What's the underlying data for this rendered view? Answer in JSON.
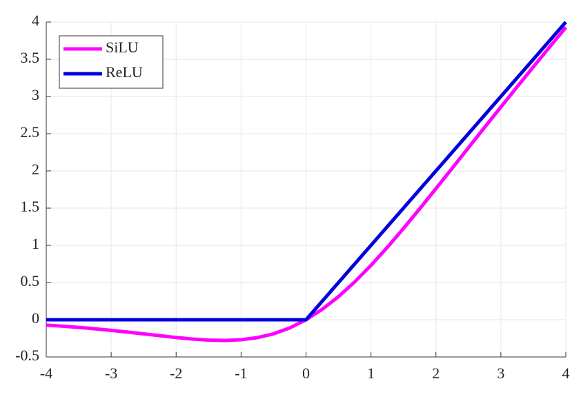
{
  "chart_data": {
    "type": "line",
    "x": [
      -4,
      -3.75,
      -3.5,
      -3.25,
      -3,
      -2.75,
      -2.5,
      -2.25,
      -2,
      -1.75,
      -1.5,
      -1.25,
      -1,
      -0.75,
      -0.5,
      -0.25,
      0,
      0.25,
      0.5,
      0.75,
      1,
      1.25,
      1.5,
      1.75,
      2,
      2.25,
      2.5,
      2.75,
      3,
      3.25,
      3.5,
      3.75,
      4
    ],
    "series": [
      {
        "name": "SiLU",
        "color": "#ff00ff",
        "values": [
          -0.0719,
          -0.0862,
          -0.1026,
          -0.1213,
          -0.1423,
          -0.1653,
          -0.1897,
          -0.2145,
          -0.2384,
          -0.2591,
          -0.2736,
          -0.2784,
          -0.2689,
          -0.2406,
          -0.1888,
          -0.1095,
          0,
          0.1405,
          0.3112,
          0.5094,
          0.7311,
          0.9716,
          1.2264,
          1.4909,
          1.7616,
          2.0355,
          2.3103,
          2.5847,
          2.8577,
          3.1287,
          3.3974,
          3.6638,
          3.9281
        ]
      },
      {
        "name": "ReLU",
        "color": "#0000dd",
        "values": [
          0,
          0,
          0,
          0,
          0,
          0,
          0,
          0,
          0,
          0,
          0,
          0,
          0,
          0,
          0,
          0,
          0,
          0.25,
          0.5,
          0.75,
          1,
          1.25,
          1.5,
          1.75,
          2,
          2.25,
          2.5,
          2.75,
          3,
          3.25,
          3.5,
          3.75,
          4
        ]
      }
    ],
    "xlim": [
      -4,
      4
    ],
    "xticks": [
      -4,
      -3,
      -2,
      -1,
      0,
      1,
      2,
      3,
      4
    ],
    "ylim": [
      -0.5,
      4
    ],
    "yticks": [
      -0.5,
      0,
      0.5,
      1,
      1.5,
      2,
      2.5,
      3,
      3.5,
      4
    ],
    "grid": true,
    "legend": "northwest"
  }
}
